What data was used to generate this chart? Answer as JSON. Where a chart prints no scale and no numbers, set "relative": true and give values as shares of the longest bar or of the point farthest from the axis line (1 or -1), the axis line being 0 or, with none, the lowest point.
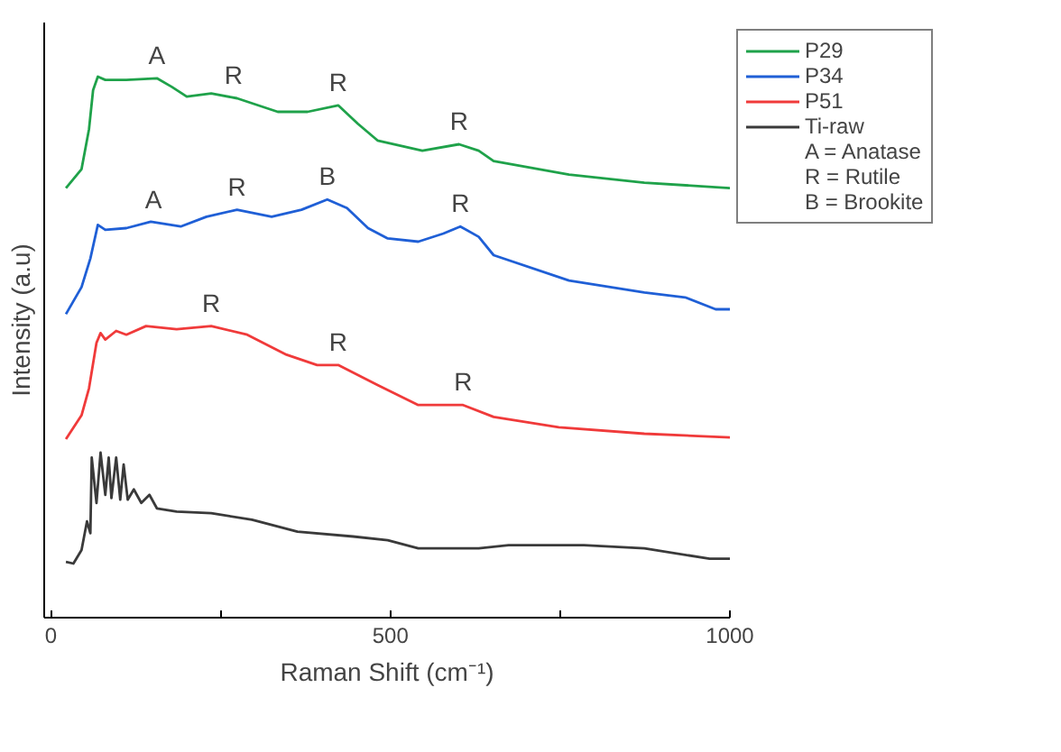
{
  "chart_data": {
    "type": "line",
    "relative": true,
    "xlabel": "Raman Shift (cm⁻¹)",
    "ylabel": "Intensity (a.u)",
    "xlim": [
      -10,
      1000
    ],
    "xticks": [
      0,
      {
        "value": 250,
        "label": null
      },
      500,
      {
        "value": 750,
        "label": null
      },
      1000
    ],
    "legend": "top right",
    "grid": false,
    "line_style": "solid",
    "marker": "none",
    "series": [
      {
        "name": "P29",
        "color": "#1fa24a",
        "x": [
          22,
          45,
          56,
          62,
          69,
          80,
          111,
          156,
          178,
          200,
          236,
          274,
          334,
          378,
          423,
          452,
          481,
          547,
          601,
          630,
          652,
          763,
          874,
          1000
        ],
        "values": [
          0.794,
          0.829,
          0.903,
          0.975,
          1.0,
          0.994,
          0.994,
          0.997,
          0.981,
          0.963,
          0.969,
          0.96,
          0.935,
          0.935,
          0.947,
          0.913,
          0.882,
          0.863,
          0.875,
          0.863,
          0.844,
          0.819,
          0.804,
          0.794
        ]
      },
      {
        "name": "P34",
        "color": "#1f5fd6",
        "x": [
          22,
          45,
          58,
          69,
          80,
          111,
          147,
          191,
          229,
          274,
          325,
          369,
          407,
          436,
          467,
          496,
          541,
          578,
          603,
          630,
          652,
          763,
          874,
          934,
          979,
          1000
        ],
        "values": [
          0.561,
          0.611,
          0.664,
          0.726,
          0.717,
          0.72,
          0.732,
          0.723,
          0.741,
          0.754,
          0.741,
          0.754,
          0.773,
          0.757,
          0.72,
          0.701,
          0.695,
          0.71,
          0.723,
          0.704,
          0.67,
          0.623,
          0.601,
          0.592,
          0.57,
          0.57
        ]
      },
      {
        "name": "P51",
        "color": "#f03a3a",
        "x": [
          22,
          45,
          56,
          67,
          73,
          80,
          96,
          111,
          140,
          185,
          236,
          289,
          347,
          392,
          423,
          481,
          541,
          607,
          652,
          748,
          874,
          1000
        ],
        "values": [
          0.33,
          0.374,
          0.424,
          0.508,
          0.526,
          0.514,
          0.53,
          0.523,
          0.539,
          0.533,
          0.539,
          0.523,
          0.486,
          0.467,
          0.467,
          0.43,
          0.393,
          0.393,
          0.371,
          0.352,
          0.34,
          0.333
        ]
      },
      {
        "name": "Ti-raw",
        "color": "#3a3a3a",
        "x": [
          22,
          33,
          45,
          53,
          58,
          60,
          67,
          73,
          80,
          85,
          89,
          96,
          102,
          107,
          113,
          122,
          133,
          145,
          156,
          185,
          236,
          296,
          363,
          445,
          496,
          541,
          630,
          674,
          785,
          874,
          970,
          1000
        ],
        "values": [
          0.103,
          0.1,
          0.125,
          0.178,
          0.156,
          0.296,
          0.212,
          0.305,
          0.227,
          0.296,
          0.221,
          0.296,
          0.218,
          0.283,
          0.218,
          0.237,
          0.212,
          0.227,
          0.202,
          0.196,
          0.193,
          0.181,
          0.159,
          0.15,
          0.143,
          0.128,
          0.128,
          0.134,
          0.134,
          0.128,
          0.109,
          0.109
        ]
      }
    ],
    "annotations": [
      {
        "text": "A",
        "x": 156,
        "y": 0.997
      },
      {
        "text": "R",
        "x": 269,
        "y": 0.96
      },
      {
        "text": "R",
        "x": 423,
        "y": 0.947
      },
      {
        "text": "R",
        "x": 601,
        "y": 0.875
      },
      {
        "text": "A",
        "x": 151,
        "y": 0.73
      },
      {
        "text": "R",
        "x": 274,
        "y": 0.754
      },
      {
        "text": "B",
        "x": 407,
        "y": 0.773
      },
      {
        "text": "R",
        "x": 603,
        "y": 0.723
      },
      {
        "text": "R",
        "x": 236,
        "y": 0.539
      },
      {
        "text": "R",
        "x": 423,
        "y": 0.467
      },
      {
        "text": "R",
        "x": 607,
        "y": 0.393
      },
      "A = Anatase",
      "R = Rutile",
      "B = Brookite"
    ]
  }
}
